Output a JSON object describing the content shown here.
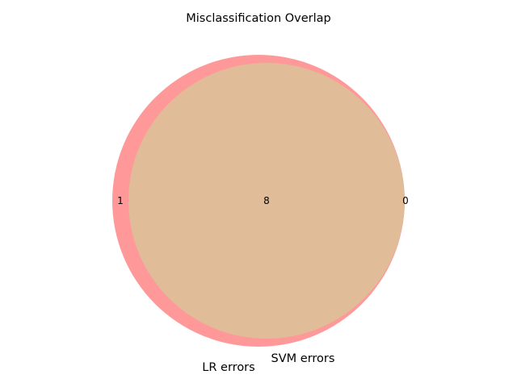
{
  "chart_data": {
    "type": "venn",
    "title": "Misclassification Overlap",
    "sets": [
      {
        "name": "LR errors",
        "color": "#ff9999"
      },
      {
        "name": "SVM errors",
        "color": "#66b3ff"
      }
    ],
    "intersection_color": "#e0bc98",
    "regions": {
      "only_a": 1,
      "only_b": 0,
      "both": 8
    }
  }
}
